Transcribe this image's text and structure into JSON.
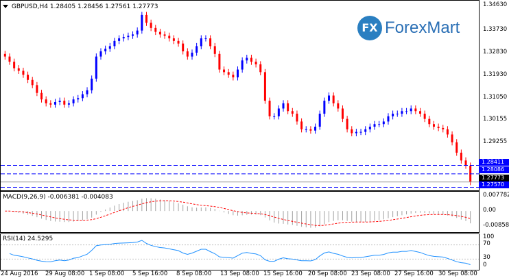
{
  "chart_header": {
    "symbol": "GBPUSD,H4",
    "open": "1.28405",
    "high": "1.28456",
    "low": "1.27561",
    "close": "1.27773"
  },
  "logo": {
    "badge": "FX",
    "text": "ForexMart"
  },
  "price_axis": [
    "1.34630",
    "1.33730",
    "1.32830",
    "1.31930",
    "1.31050",
    "1.30155",
    "1.29255"
  ],
  "price_tags": {
    "line1": "1.28411",
    "line2": "1.28086",
    "current": "1.27773",
    "line3": "1.27570"
  },
  "macd": {
    "label": "MACD(9,26,9) -0.006381 -0.004083",
    "axis": [
      "0.007782",
      "0.00",
      "-0.008582"
    ]
  },
  "rsi": {
    "label": "RSI(14) 24.5295",
    "axis": [
      "100",
      "70",
      "30",
      "0"
    ]
  },
  "time_axis": [
    "24 Aug 2016",
    "29 Aug 08:00",
    "1 Sep 08:00",
    "5 Sep 16:00",
    "8 Sep 08:00",
    "13 Sep 08:00",
    "15 Sep 16:00",
    "20 Sep 08:00",
    "23 Sep 08:00",
    "27 Sep 16:00",
    "30 Sep 08:00"
  ],
  "colors": {
    "bull": "#0000ff",
    "bear": "#ff0000",
    "macd_hist": "#a0a0a0",
    "macd_signal": "#ff0000",
    "rsi_line": "#1e90ff",
    "level_line": "#0000ff"
  },
  "chart_data": {
    "type": "candlestick",
    "symbol": "GBPUSD",
    "timeframe": "H4",
    "close_series": [
      1.326,
      1.324,
      1.3215,
      1.3205,
      1.319,
      1.317,
      1.315,
      1.312,
      1.3095,
      1.308,
      1.3075,
      1.3085,
      1.309,
      1.3075,
      1.308,
      1.3095,
      1.31,
      1.3115,
      1.313,
      1.3175,
      1.326,
      1.328,
      1.329,
      1.33,
      1.332,
      1.333,
      1.3335,
      1.334,
      1.3345,
      1.336,
      1.342,
      1.339,
      1.337,
      1.3355,
      1.3345,
      1.334,
      1.333,
      1.332,
      1.331,
      1.328,
      1.326,
      1.3275,
      1.33,
      1.333,
      1.333,
      1.33,
      1.327,
      1.321,
      1.32,
      1.319,
      1.318,
      1.321,
      1.3245,
      1.3255,
      1.324,
      1.323,
      1.32,
      1.309,
      1.303,
      1.303,
      1.306,
      1.308,
      1.305,
      1.304,
      1.301,
      1.298,
      1.298,
      1.2975,
      1.299,
      1.304,
      1.309,
      1.311,
      1.308,
      1.306,
      1.302,
      1.298,
      1.2965,
      1.297,
      1.297,
      1.298,
      1.299,
      1.3,
      1.3,
      1.301,
      1.303,
      1.304,
      1.304,
      1.305,
      1.305,
      1.306,
      1.305,
      1.304,
      1.302,
      1.3,
      1.299,
      1.2985,
      1.298,
      1.296,
      1.293,
      1.289,
      1.286,
      1.284,
      1.2777
    ],
    "price_levels": [
      1.28411,
      1.28086,
      1.2757
    ],
    "current_price": 1.27773,
    "ylim": [
      1.2745,
      1.3475
    ],
    "macd_params": "9,26,9",
    "macd_value": -0.006381,
    "macd_signal": -0.004083,
    "macd_range": [
      -0.008582,
      0.007782
    ],
    "rsi_period": 14,
    "rsi_value": 24.5295,
    "rsi_levels": [
      70,
      30
    ]
  }
}
